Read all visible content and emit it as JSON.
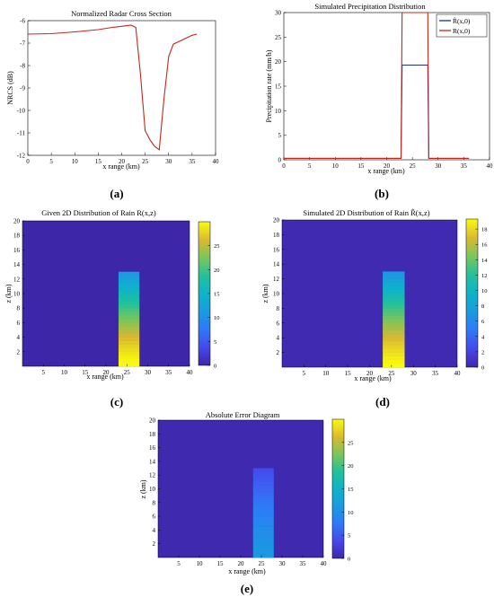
{
  "colors": {
    "blue": "#1f2ea8",
    "red": "#c0281e",
    "field": "#3d26a8"
  },
  "panel_labels": {
    "a": "(a)",
    "b": "(b)",
    "c": "(c)",
    "d": "(d)",
    "e": "(e)"
  },
  "chart_data": [
    {
      "id": "a",
      "type": "line",
      "title": "Normalized Radar Cross Section",
      "xlabel": "x range  (km)",
      "ylabel": "NRCS  (dB)",
      "xlim": [
        0,
        40
      ],
      "ylim": [
        -12,
        -6
      ],
      "xticks": [
        0,
        5,
        10,
        15,
        20,
        25,
        30,
        35,
        40
      ],
      "yticks": [
        -12,
        -11,
        -10,
        -9,
        -8,
        -7,
        -6
      ],
      "series": [
        {
          "x": [
            0,
            5,
            10,
            15,
            18,
            20,
            22,
            23,
            24,
            25,
            26,
            27,
            28,
            29,
            30,
            31,
            33,
            35,
            36
          ],
          "y": [
            -6.6,
            -6.58,
            -6.5,
            -6.4,
            -6.3,
            -6.25,
            -6.2,
            -6.3,
            -8.4,
            -10.9,
            -11.3,
            -11.6,
            -11.75,
            -9.5,
            -7.6,
            -7.05,
            -6.85,
            -6.65,
            -6.6
          ]
        }
      ]
    },
    {
      "id": "b",
      "type": "line",
      "title": "Simulated Precipitation Distribution",
      "xlabel": "x range  (km)",
      "ylabel": "Precipitation rate   (mm/h)",
      "xlim": [
        0,
        40
      ],
      "ylim": [
        0,
        30
      ],
      "xticks": [
        0,
        5,
        10,
        15,
        20,
        25,
        30,
        35,
        40
      ],
      "yticks": [
        0,
        5,
        10,
        15,
        20,
        25,
        30
      ],
      "legend": "top-right",
      "series": [
        {
          "name": "R̂(x,0)",
          "x": [
            0,
            22.8,
            23,
            28,
            28.2,
            36
          ],
          "y": [
            0.3,
            0.3,
            19.3,
            19.3,
            0.3,
            0.3
          ]
        },
        {
          "name": "R(x,0)",
          "x": [
            0,
            22.8,
            23,
            28,
            28.2,
            36
          ],
          "y": [
            0.3,
            0.3,
            30,
            30,
            0.3,
            0.3
          ]
        }
      ]
    },
    {
      "id": "c",
      "type": "heatmap",
      "title": "Given 2D Distribution of Rain R(x,z)",
      "xlabel": "x range  (km)",
      "ylabel": "z  (km)",
      "xlim": [
        0,
        40
      ],
      "ylim": [
        0,
        20
      ],
      "xticks": [
        5,
        10,
        15,
        20,
        25,
        30,
        35,
        40
      ],
      "yticks": [
        2,
        4,
        6,
        8,
        10,
        12,
        14,
        16,
        18,
        20
      ],
      "colorbar_ticks": [
        0,
        5,
        10,
        15,
        20,
        25
      ],
      "colorbar_range": [
        0,
        30
      ],
      "background_value": 0,
      "column": {
        "x": [
          23,
          28
        ],
        "z": [
          0,
          13
        ],
        "bottom_value": 30,
        "top_value": 11
      }
    },
    {
      "id": "d",
      "type": "heatmap",
      "title": "Simulated 2D Distribution of Rain R̂(x,z)",
      "xlabel": "x range  (km)",
      "ylabel": "z  (km)",
      "xlim": [
        0,
        40
      ],
      "ylim": [
        0,
        20
      ],
      "xticks": [
        5,
        10,
        15,
        20,
        25,
        30,
        35,
        40
      ],
      "yticks": [
        2,
        4,
        6,
        8,
        10,
        12,
        14,
        16,
        18,
        20
      ],
      "colorbar_ticks": [
        0,
        2,
        4,
        6,
        8,
        10,
        12,
        14,
        16,
        18
      ],
      "colorbar_range": [
        0,
        19.3
      ],
      "background_value": 0.3,
      "column": {
        "x": [
          23,
          28
        ],
        "z": [
          0,
          13
        ],
        "bottom_value": 19.3,
        "top_value": 7
      }
    },
    {
      "id": "e",
      "type": "heatmap",
      "title": "Absolute Error Diagram",
      "xlabel": "x range  (km)",
      "ylabel": "z  (km)",
      "xlim": [
        0,
        40
      ],
      "ylim": [
        0,
        20
      ],
      "xticks": [
        5,
        10,
        15,
        20,
        25,
        30,
        35,
        40
      ],
      "yticks": [
        2,
        4,
        6,
        8,
        10,
        12,
        14,
        16,
        18,
        20
      ],
      "colorbar_ticks": [
        0,
        5,
        10,
        15,
        20,
        25
      ],
      "colorbar_range": [
        0,
        30
      ],
      "background_value": 0.3,
      "column": {
        "x": [
          23,
          28
        ],
        "z": [
          0,
          13
        ],
        "bottom_value": 11,
        "top_value": 4
      }
    }
  ]
}
